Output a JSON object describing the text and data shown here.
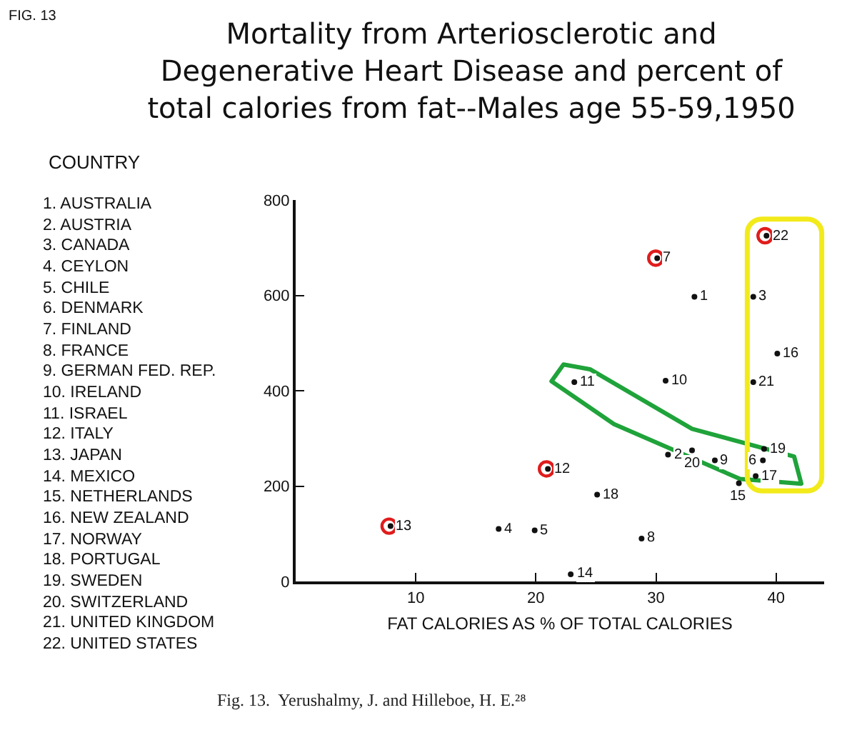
{
  "chart_data": {
    "type": "scatter",
    "title": "Mortality from Arteriosclerotic and\nDegenerative Heart Disease and percent of\ntotal calories from fat--Males age 55-59,1950",
    "xlabel": "FAT CALORIES AS % OF TOTAL CALORIES",
    "x": [
      33.2,
      31.0,
      38.1,
      16.9,
      19.9,
      38.9,
      30.1,
      28.8,
      34.9,
      30.8,
      23.2,
      21.0,
      7.9,
      22.9,
      36.9,
      40.1,
      38.3,
      25.1,
      39.0,
      33.0,
      38.1,
      39.2
    ],
    "series": [
      {
        "color": "#111111",
        "values": [
          597,
          266,
          597,
          110,
          107,
          254,
          678,
          90,
          254,
          421,
          418,
          236,
          116,
          15,
          206,
          478,
          221,
          182,
          278,
          275,
          418,
          725
        ]
      }
    ],
    "marker": "circle",
    "xlim": [
      0,
      44
    ],
    "xticks": [
      10,
      20,
      30,
      40
    ],
    "ylim": [
      0,
      800
    ],
    "yticks": [
      0,
      200,
      400,
      600,
      800
    ],
    "annotations": [
      "FIG. 13",
      "COUNTRY",
      "1. AUSTRALIA",
      "2. AUSTRIA",
      "3. CANADA",
      "4. CEYLON",
      "5. CHILE",
      "6. DENMARK",
      "7. FINLAND",
      "8. FRANCE",
      "9. GERMAN FED. REP.",
      "10. IRELAND",
      "11. ISRAEL",
      "12. ITALY",
      "13. JAPAN",
      "14. MEXICO",
      "15. NETHERLANDS",
      "16. NEW ZEALAND",
      "17. NORWAY",
      "18. PORTUGAL",
      "19. SWEDEN",
      "20. SWITZERLAND",
      "21. UNITED KINGDOM",
      "22. UNITED STATES",
      "Fig. 13.  Yerushalmy, J. and Hilleboe, H. E.²⁸",
      {
        "text": "1",
        "x": 33.2,
        "y": 597
      },
      {
        "text": "2",
        "x": 31.0,
        "y": 266
      },
      {
        "text": "3",
        "x": 38.1,
        "y": 597
      },
      {
        "text": "4",
        "x": 16.9,
        "y": 110
      },
      {
        "text": "5",
        "x": 19.9,
        "y": 107
      },
      {
        "text": "6",
        "x": 38.9,
        "y": 254
      },
      {
        "text": "7",
        "x": 30.1,
        "y": 678
      },
      {
        "text": "8",
        "x": 28.8,
        "y": 90
      },
      {
        "text": "9",
        "x": 34.9,
        "y": 254
      },
      {
        "text": "10",
        "x": 30.8,
        "y": 421
      },
      {
        "text": "11",
        "x": 23.2,
        "y": 418
      },
      {
        "text": "12",
        "x": 21.0,
        "y": 236
      },
      {
        "text": "13",
        "x": 7.9,
        "y": 116
      },
      {
        "text": "14",
        "x": 22.9,
        "y": 15
      },
      {
        "text": "15",
        "x": 36.9,
        "y": 206
      },
      {
        "text": "16",
        "x": 40.1,
        "y": 478
      },
      {
        "text": "17",
        "x": 38.3,
        "y": 221
      },
      {
        "text": "18",
        "x": 25.1,
        "y": 182
      },
      {
        "text": "19",
        "x": 39.0,
        "y": 278
      },
      {
        "text": "20",
        "x": 33.0,
        "y": 275
      },
      {
        "text": "21",
        "x": 38.1,
        "y": 418
      },
      {
        "text": "22",
        "x": 39.2,
        "y": 725
      }
    ]
  }
}
